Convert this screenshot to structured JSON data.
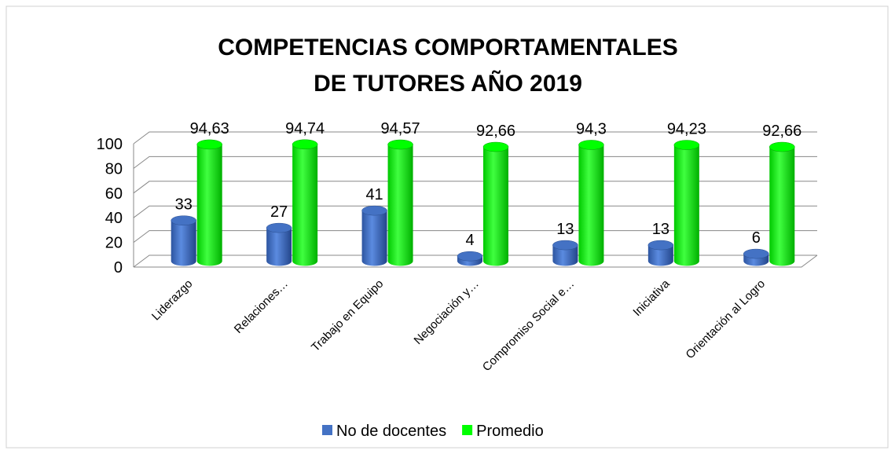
{
  "chart_data": {
    "type": "bar3d",
    "title": "COMPETENCIAS COMPORTAMENTALES DE TUTORES  AÑO 2019",
    "categories": [
      "Liderazgo",
      "Relaciones…",
      "Trabajo en Equipo",
      "Negociación y…",
      "Compromiso Social e…",
      "Iniciativa",
      "Orientación al Logro"
    ],
    "series": [
      {
        "name": "No de docentes",
        "color": "#4472c4",
        "values": [
          33,
          27,
          41,
          4,
          13,
          13,
          6
        ]
      },
      {
        "name": "Promedio",
        "color": "#00ff00",
        "values": [
          94.63,
          94.74,
          94.57,
          92.66,
          94.3,
          94.23,
          92.66
        ],
        "value_labels": [
          "94,63",
          "94,74",
          "94,57",
          "92,66",
          "94,3",
          "94,23",
          "92,66"
        ]
      }
    ],
    "ylim": [
      0,
      100
    ],
    "yticks": [
      0,
      20,
      40,
      60,
      80,
      100
    ],
    "grid": true,
    "legend": "bottom"
  }
}
